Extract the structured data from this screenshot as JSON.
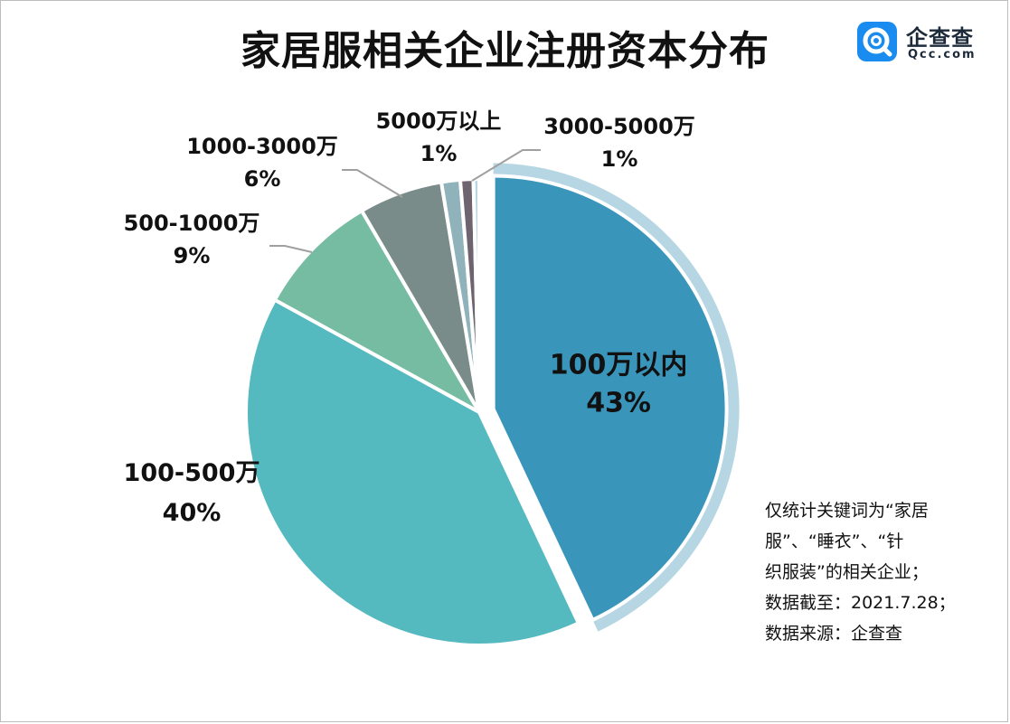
{
  "title": "家居服相关企业注册资本分布",
  "logo": {
    "name_cn": "企查查",
    "name_en": "Qcc.com"
  },
  "chart_data": {
    "type": "pie",
    "title": "家居服相关企业注册资本分布",
    "start_angle_deg": 0,
    "direction": "clockwise",
    "slices": [
      {
        "label": "100万以内",
        "percent_label": "43%",
        "value": 43,
        "color": "#3a95bb",
        "exploded": true,
        "label_position": "inside"
      },
      {
        "label": "100-500万",
        "percent_label": "40%",
        "value": 40,
        "color": "#55b9c0",
        "exploded": false,
        "label_position": "outside"
      },
      {
        "label": "500-1000万",
        "percent_label": "9%",
        "value": 8.6,
        "color": "#76bca3",
        "exploded": false,
        "label_position": "outside"
      },
      {
        "label": "1000-3000万",
        "percent_label": "6%",
        "value": 5.8,
        "color": "#7a8c89",
        "exploded": false,
        "label_position": "outside"
      },
      {
        "label": "5000万以上",
        "percent_label": "1%",
        "value": 1.3,
        "color": "#8fb2bb",
        "exploded": false,
        "label_position": "outside"
      },
      {
        "label": "3000-5000万",
        "percent_label": "1%",
        "value": 0.9,
        "color": "#6d6470",
        "exploded": false,
        "label_position": "outside"
      },
      {
        "label": "",
        "percent_label": "",
        "value": 0.4,
        "color": "#b7d6e3",
        "exploded": false,
        "label_position": "none"
      }
    ]
  },
  "note": {
    "lines": [
      "仅统计关键词为“家居",
      "服”、“睡衣”、“针",
      "织服装”的相关企业；",
      "数据截至：2021.7.28；",
      "数据来源：企查查"
    ]
  }
}
